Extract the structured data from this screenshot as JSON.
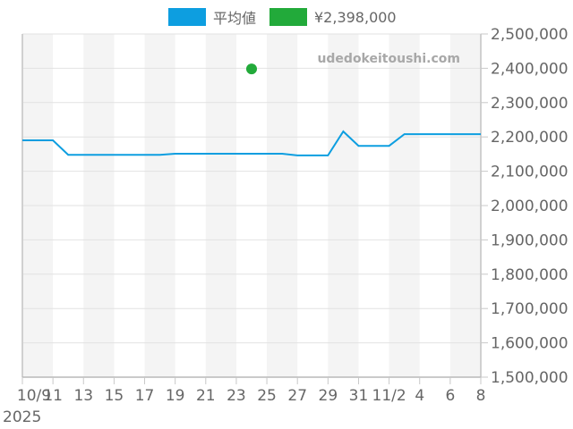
{
  "legend": {
    "items": [
      {
        "label": "平均値",
        "color": "#0d9ee0"
      },
      {
        "label": "¥2,398,000",
        "color": "#22aa3a"
      }
    ]
  },
  "watermark": "udedokeitoushi.com",
  "y_axis": {
    "ticks": [
      "2,500,000",
      "2,400,000",
      "2,300,000",
      "2,200,000",
      "2,100,000",
      "2,000,000",
      "1,900,000",
      "1,800,000",
      "1,700,000",
      "1,600,000",
      "1,500,000"
    ]
  },
  "x_axis": {
    "ticks": [
      "10/9",
      "11",
      "13",
      "15",
      "17",
      "19",
      "21",
      "23",
      "25",
      "27",
      "29",
      "31",
      "11/2",
      "4",
      "6",
      "8"
    ],
    "year_label": "2025"
  },
  "chart_data": {
    "type": "line",
    "title": "",
    "xlabel": "",
    "ylabel": "",
    "ylim": [
      1500000,
      2500000
    ],
    "grid": true,
    "legend_position": "top",
    "x_ticks": [
      "10/9",
      "10/11",
      "10/13",
      "10/15",
      "10/17",
      "10/19",
      "10/21",
      "10/23",
      "10/25",
      "10/27",
      "10/29",
      "10/31",
      "11/2",
      "11/4",
      "11/6",
      "11/8"
    ],
    "series": [
      {
        "name": "平均値",
        "color": "#0d9ee0",
        "points": [
          {
            "x": "2025-10-09",
            "y": 2190000
          },
          {
            "x": "2025-10-11",
            "y": 2190000
          },
          {
            "x": "2025-10-12",
            "y": 2148000
          },
          {
            "x": "2025-10-18",
            "y": 2148000
          },
          {
            "x": "2025-10-19",
            "y": 2151000
          },
          {
            "x": "2025-10-26",
            "y": 2151000
          },
          {
            "x": "2025-10-27",
            "y": 2146000
          },
          {
            "x": "2025-10-29",
            "y": 2146000
          },
          {
            "x": "2025-10-30",
            "y": 2216000
          },
          {
            "x": "2025-10-31",
            "y": 2174000
          },
          {
            "x": "2025-11-02",
            "y": 2174000
          },
          {
            "x": "2025-11-03",
            "y": 2208000
          },
          {
            "x": "2025-11-08",
            "y": 2208000
          }
        ]
      },
      {
        "name": "¥2,398,000",
        "color": "#22aa3a",
        "type": "scatter",
        "points": [
          {
            "x": "2025-10-24",
            "y": 2398000
          }
        ]
      }
    ]
  }
}
